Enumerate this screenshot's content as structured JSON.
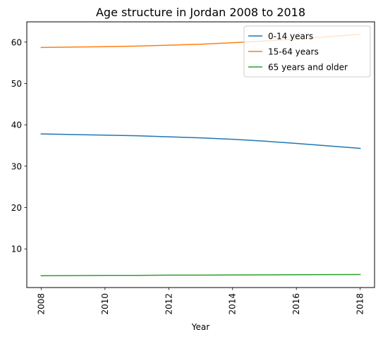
{
  "chart_data": {
    "type": "line",
    "title": "Age structure in Jordan 2008 to 2018",
    "xlabel": "Year",
    "ylabel": "",
    "x": [
      2008,
      2009,
      2010,
      2011,
      2012,
      2013,
      2014,
      2015,
      2016,
      2017,
      2018
    ],
    "xticks": [
      2008,
      2010,
      2012,
      2014,
      2016,
      2018
    ],
    "yticks": [
      10,
      20,
      30,
      40,
      50,
      60
    ],
    "xlim": [
      2007.55,
      2018.45
    ],
    "ylim": [
      0.65,
      64.9
    ],
    "grid": false,
    "legend": "top-right",
    "series": [
      {
        "name": "0-14 years",
        "color": "#1f77b4",
        "values": [
          37.8,
          37.65,
          37.5,
          37.35,
          37.1,
          36.85,
          36.5,
          36.05,
          35.5,
          34.9,
          34.3
        ]
      },
      {
        "name": "15-64 years",
        "color": "#ff7f0e",
        "values": [
          58.7,
          58.8,
          58.9,
          59.05,
          59.25,
          59.5,
          59.85,
          60.25,
          60.75,
          61.3,
          61.9
        ]
      },
      {
        "name": "65 years and older",
        "color": "#2ca02c",
        "values": [
          3.5,
          3.55,
          3.6,
          3.6,
          3.65,
          3.65,
          3.7,
          3.72,
          3.75,
          3.78,
          3.8
        ]
      }
    ]
  }
}
